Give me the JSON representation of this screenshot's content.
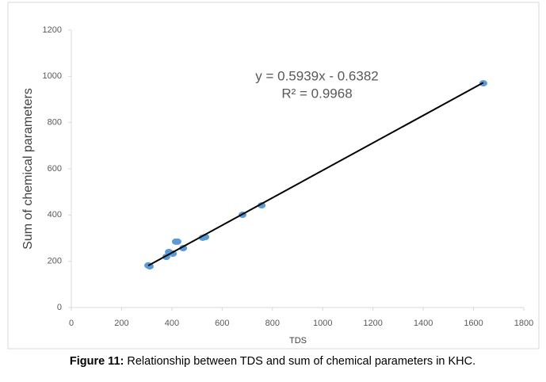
{
  "chart_data": {
    "type": "scatter",
    "x_label": "TDS",
    "y_label": "Sum of chemical parameters",
    "x": [
      306,
      312,
      378,
      388,
      404,
      416,
      422,
      445,
      523,
      533,
      681,
      757,
      1639
    ],
    "series": [
      {
        "color": "#5b9bd5",
        "values": [
          182,
          178,
          219,
          240,
          233,
          285,
          285,
          257,
          302,
          305,
          401,
          442,
          970
        ]
      }
    ],
    "xlim": [
      0,
      1800
    ],
    "xticks": [
      0,
      200,
      400,
      600,
      800,
      1000,
      1200,
      1400,
      1600,
      1800
    ],
    "ylim": [
      0,
      1200
    ],
    "yticks": [
      0,
      200,
      400,
      600,
      800,
      1000,
      1200
    ],
    "grid": false,
    "trendline": {
      "slope": 0.5939,
      "intercept": -0.6382,
      "color": "#000000",
      "equation": "y = 0.5939x - 0.6382",
      "r2": "R² = 0.9968"
    },
    "caption_label": "Figure 11:",
    "caption": "Relationship between TDS and sum of chemical parameters in KHC."
  }
}
